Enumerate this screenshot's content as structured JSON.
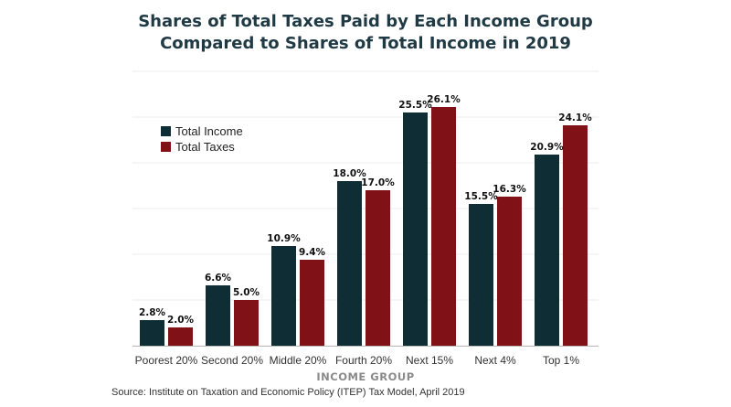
{
  "chart_data": {
    "type": "bar",
    "title_lines": [
      "Shares of Total Taxes Paid by Each Income Group",
      "Compared to Shares of Total Income in 2019"
    ],
    "xlabel": "INCOME GROUP",
    "ylabel": "",
    "categories": [
      "Poorest 20%",
      "Second 20%",
      "Middle 20%",
      "Fourth 20%",
      "Next 15%",
      "Next 4%",
      "Top 1%"
    ],
    "series": [
      {
        "name": "Total Income",
        "color": "#0f2d35",
        "values": [
          2.8,
          6.6,
          10.9,
          18.0,
          25.5,
          15.5,
          20.9
        ],
        "labels": [
          "2.8%",
          "6.6%",
          "10.9%",
          "18.0%",
          "25.5%",
          "15.5%",
          "20.9%"
        ]
      },
      {
        "name": "Total Taxes",
        "color": "#7f1117",
        "values": [
          2.0,
          5.0,
          9.4,
          17.0,
          26.1,
          16.3,
          24.1
        ],
        "labels": [
          "2.0%",
          "5.0%",
          "9.4%",
          "17.0%",
          "26.1%",
          "16.3%",
          "24.1%"
        ]
      }
    ],
    "ylim": [
      0,
      30
    ],
    "grid": true,
    "legend_position": "top-left"
  },
  "source": "Source: Institute on Taxation and Economic Policy (ITEP) Tax Model, April 2019"
}
